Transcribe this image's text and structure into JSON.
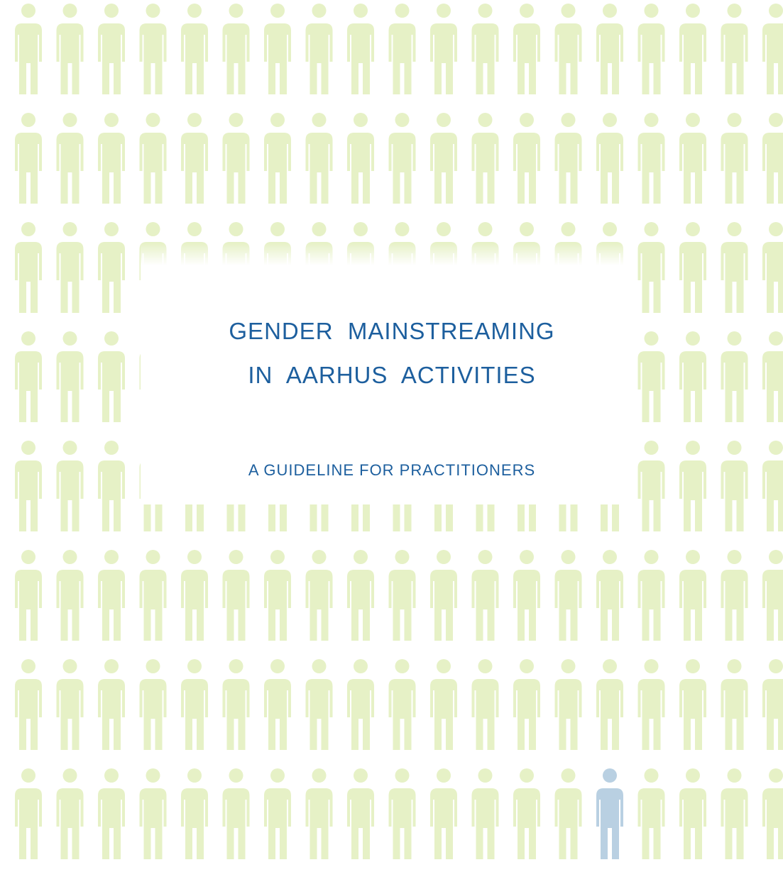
{
  "cover": {
    "title_lines": [
      "GENDER  MAINSTREAMING",
      "IN  AARHUS  ACTIVITIES"
    ],
    "subtitle": "A GUIDELINE FOR PRACTITIONERS"
  }
}
